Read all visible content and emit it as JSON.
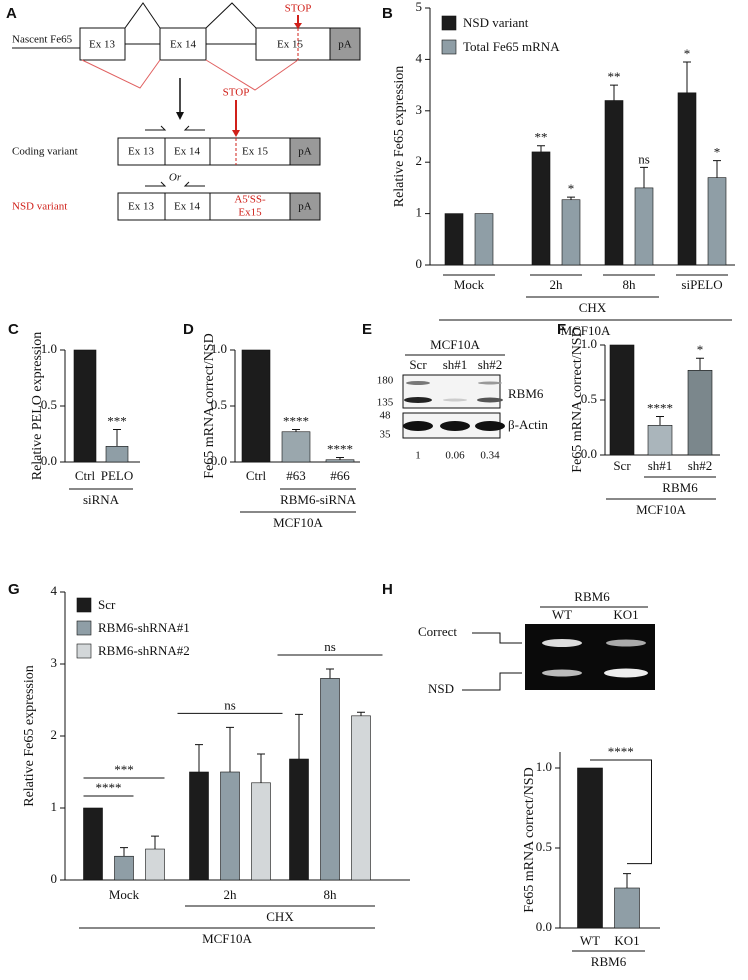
{
  "diagram_a": {
    "panel": "A",
    "nascent": {
      "label": "Nascent Fe65",
      "exons": [
        "Ex 13",
        "Ex 14",
        "Ex 15",
        "pA"
      ],
      "stop": "STOP"
    },
    "coding": {
      "label": "Coding variant",
      "exons": [
        "Ex 13",
        "Ex 14",
        "Ex 15",
        "pA"
      ],
      "stop": "STOP"
    },
    "connector": "Or",
    "nsd": {
      "label": "NSD variant",
      "exons": [
        "Ex 13",
        "Ex 14",
        [
          "A5'SS-",
          "Ex15"
        ],
        "pA"
      ]
    }
  },
  "blot_e": {
    "panel": "E",
    "title": "MCF10A",
    "lanes": [
      "Scr",
      "sh#1",
      "sh#2"
    ],
    "markers": [
      "180",
      "135",
      "48",
      "35"
    ],
    "bands": [
      "RBM6",
      "β-Actin"
    ],
    "quantification": [
      "1",
      "0.06",
      "0.34"
    ]
  },
  "gel_h": {
    "panel": "H",
    "title": "RBM6",
    "lanes": [
      "WT",
      "KO1"
    ],
    "bands": [
      "Correct",
      "NSD"
    ]
  },
  "chart_data": [
    {
      "type": "bar",
      "panel": "B",
      "ylabel": "Relative Fe65 expression",
      "categories": [
        "Mock",
        "2h",
        "8h",
        "siPELO"
      ],
      "series": [
        {
          "name": "NSD variant",
          "color": "#1c1c1c",
          "values": [
            1,
            2.2,
            3.2,
            3.35
          ],
          "errors": [
            null,
            0.12,
            0.3,
            0.6
          ],
          "significance": [
            null,
            "**",
            "**",
            "*"
          ]
        },
        {
          "name": "Total Fe65 mRNA",
          "color": "#8f9ea6",
          "values": [
            1,
            1.27,
            1.5,
            1.7
          ],
          "errors": [
            null,
            0.05,
            0.4,
            0.33
          ],
          "significance": [
            null,
            "*",
            "ns",
            "*"
          ]
        }
      ],
      "groups": [
        {
          "label": "CHX",
          "span": [
            1,
            2
          ]
        },
        {
          "label": "MCF10A",
          "span": [
            0,
            3
          ]
        }
      ],
      "ylim": [
        0,
        5
      ],
      "yticks": [
        0,
        1,
        2,
        3,
        4,
        5
      ]
    },
    {
      "type": "bar",
      "panel": "C",
      "ylabel": "Relative PELO expression",
      "categories": [
        "Ctrl",
        "PELO"
      ],
      "values": [
        1,
        0.14
      ],
      "colors": [
        "#1c1c1c",
        "#8f9ea6"
      ],
      "errors": [
        null,
        0.15
      ],
      "significance": [
        null,
        "***"
      ],
      "groups": [
        {
          "label": "siRNA",
          "span": [
            0,
            1
          ]
        }
      ],
      "ylim": [
        0,
        1
      ],
      "yticks": [
        {
          "value": 0,
          "label": "0.0"
        },
        {
          "value": 0.5,
          "label": "0.5"
        },
        {
          "value": 1,
          "label": "1.0"
        }
      ]
    },
    {
      "type": "bar",
      "panel": "D",
      "ylabel": "Fe65 mRNA correct/NSD",
      "categories": [
        "Ctrl",
        "#63",
        "#66"
      ],
      "values": [
        1,
        0.27,
        0.02
      ],
      "colors": [
        "#1c1c1c",
        "#9aa7ad",
        "#9aa7ad"
      ],
      "errors": [
        null,
        0.02,
        0.02
      ],
      "significance": [
        null,
        "****",
        "****"
      ],
      "groups": [
        {
          "label": "RBM6-siRNA",
          "span": [
            1,
            2
          ]
        },
        {
          "label": "MCF10A",
          "span": [
            0,
            2
          ]
        }
      ],
      "ylim": [
        0,
        1
      ],
      "yticks": [
        {
          "value": 0,
          "label": "0.0"
        },
        {
          "value": 0.5,
          "label": "0.5"
        },
        {
          "value": 1,
          "label": "1.0"
        }
      ]
    },
    {
      "type": "bar",
      "panel": "F",
      "ylabel": "Fe65 mRNA correct/NSD",
      "categories": [
        "Scr",
        "sh#1",
        "sh#2"
      ],
      "values": [
        1,
        0.27,
        0.77
      ],
      "colors": [
        "#1c1c1c",
        "#aab5bb",
        "#7b878c"
      ],
      "errors": [
        null,
        0.08,
        0.11
      ],
      "significance": [
        null,
        "****",
        "*"
      ],
      "groups": [
        {
          "label": "RBM6",
          "span": [
            1,
            2
          ]
        },
        {
          "label": "MCF10A",
          "span": [
            0,
            2
          ]
        }
      ],
      "ylim": [
        0,
        1
      ],
      "yticks": [
        {
          "value": 0,
          "label": "0.0"
        },
        {
          "value": 0.5,
          "label": "0.5"
        },
        {
          "value": 1,
          "label": "1.0"
        }
      ]
    },
    {
      "type": "bar",
      "panel": "G",
      "ylabel": "Relative Fe65 expression",
      "categories": [
        "Mock",
        "2h",
        "8h"
      ],
      "series": [
        {
          "name": "Scr",
          "color": "#1c1c1c",
          "values": [
            1,
            1.5,
            1.68
          ],
          "errors": [
            null,
            0.38,
            0.62
          ]
        },
        {
          "name": "RBM6-shRNA#1",
          "color": "#8f9ea6",
          "values": [
            0.33,
            1.5,
            2.8
          ],
          "errors": [
            0.12,
            0.62,
            0.13
          ]
        },
        {
          "name": "RBM6-shRNA#2",
          "color": "#d3d7d9",
          "values": [
            0.43,
            1.35,
            2.28
          ],
          "errors": [
            0.18,
            0.4,
            0.05
          ]
        }
      ],
      "brackets": [
        {
          "label": "****",
          "category": 0,
          "series": [
            0,
            1
          ]
        },
        {
          "label": "***",
          "category": 0,
          "series": [
            0,
            2
          ]
        },
        {
          "label": "ns",
          "category": 1
        },
        {
          "label": "ns",
          "category": 2
        }
      ],
      "groups": [
        {
          "label": "CHX",
          "span": [
            1,
            2
          ]
        },
        {
          "label": "MCF10A",
          "span": [
            0,
            2
          ]
        }
      ],
      "ylim": [
        0,
        4
      ],
      "yticks": [
        0,
        1,
        2,
        3,
        4
      ]
    },
    {
      "type": "bar",
      "ylabel": "Fe65 mRNA correct/NSD",
      "categories": [
        "WT",
        "KO1"
      ],
      "values": [
        1,
        0.25
      ],
      "colors": [
        "#1c1c1c",
        "#8f9ea6"
      ],
      "errors": [
        null,
        0.09
      ],
      "brackets": [
        {
          "label": "****",
          "categories": [
            0,
            1
          ]
        }
      ],
      "groups": [
        {
          "label": "RBM6",
          "span": [
            0,
            1
          ]
        }
      ],
      "ylim": [
        0,
        1.1
      ],
      "yticks": [
        {
          "value": 0,
          "label": "0.0"
        },
        {
          "value": 0.5,
          "label": "0.5"
        },
        {
          "value": 1,
          "label": "1.0"
        }
      ]
    }
  ]
}
